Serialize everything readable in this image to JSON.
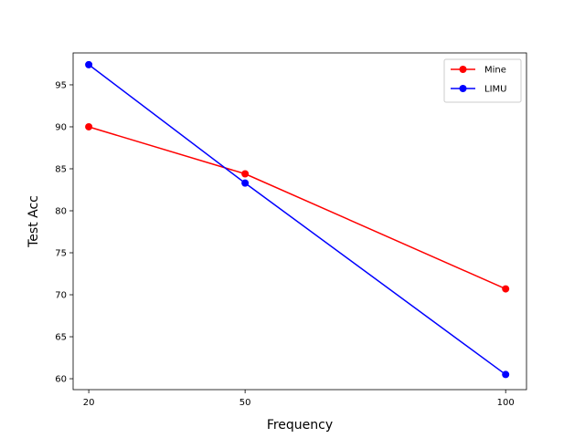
{
  "chart_data": {
    "type": "line",
    "title": "",
    "xlabel": "Frequency",
    "ylabel": "Test Acc",
    "x": [
      20,
      50,
      100
    ],
    "xticks": [
      "20",
      "50",
      "100"
    ],
    "xlim": [
      17,
      104
    ],
    "yticks": [
      60,
      65,
      70,
      75,
      80,
      85,
      90,
      95
    ],
    "ylim": [
      58.7,
      98.8
    ],
    "grid": false,
    "legend_position": "top-right",
    "series": [
      {
        "name": "Mine",
        "color": "#ff0000",
        "marker": "circle",
        "values": [
          90.0,
          84.4,
          70.7
        ]
      },
      {
        "name": "LIMU",
        "color": "#0000ff",
        "marker": "circle",
        "values": [
          97.4,
          83.3,
          60.5
        ]
      }
    ]
  }
}
